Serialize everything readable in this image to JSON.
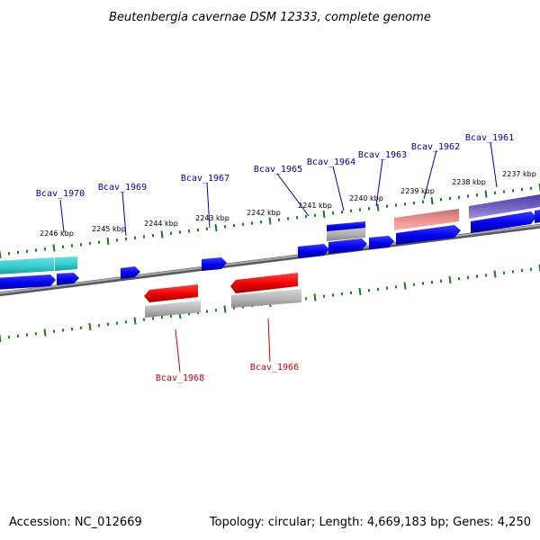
{
  "title": "Beutenbergia cavernae DSM 12333, complete genome",
  "footer": {
    "accession": "Accession: NC_012669",
    "summary": "Topology: circular; Length: 4,669,183 bp; Genes: 4,250"
  },
  "colors": {
    "background": "#ffffff",
    "backbone": "#808080",
    "ticks": "#1a7a1a",
    "forward_gene": "#0000ee",
    "reverse_gene": "#ee0000",
    "rna_cyan": "#33cccc",
    "forward_label": "#0000aa",
    "reverse_label": "#cc0000",
    "pseudo_salmon": "#f09090",
    "pseudo_purple": "#7060c0",
    "shadow_gray": "#b0b0b0"
  },
  "kbp_labels": [
    "2246 kbp",
    "2245 kbp",
    "2244 kbp",
    "2243 kbp",
    "2242 kbp",
    "2241 kbp",
    "2240 kbp",
    "2239 kbp",
    "2238 kbp",
    "2237 kbp"
  ],
  "forward_gene_labels": [
    "Bcav_1970",
    "Bcav_1969",
    "Bcav_1967",
    "Bcav_1965",
    "Bcav_1964",
    "Bcav_1963",
    "Bcav_1962",
    "Bcav_1961"
  ],
  "reverse_gene_labels": [
    "Bcav_1968",
    "Bcav_1966"
  ]
}
